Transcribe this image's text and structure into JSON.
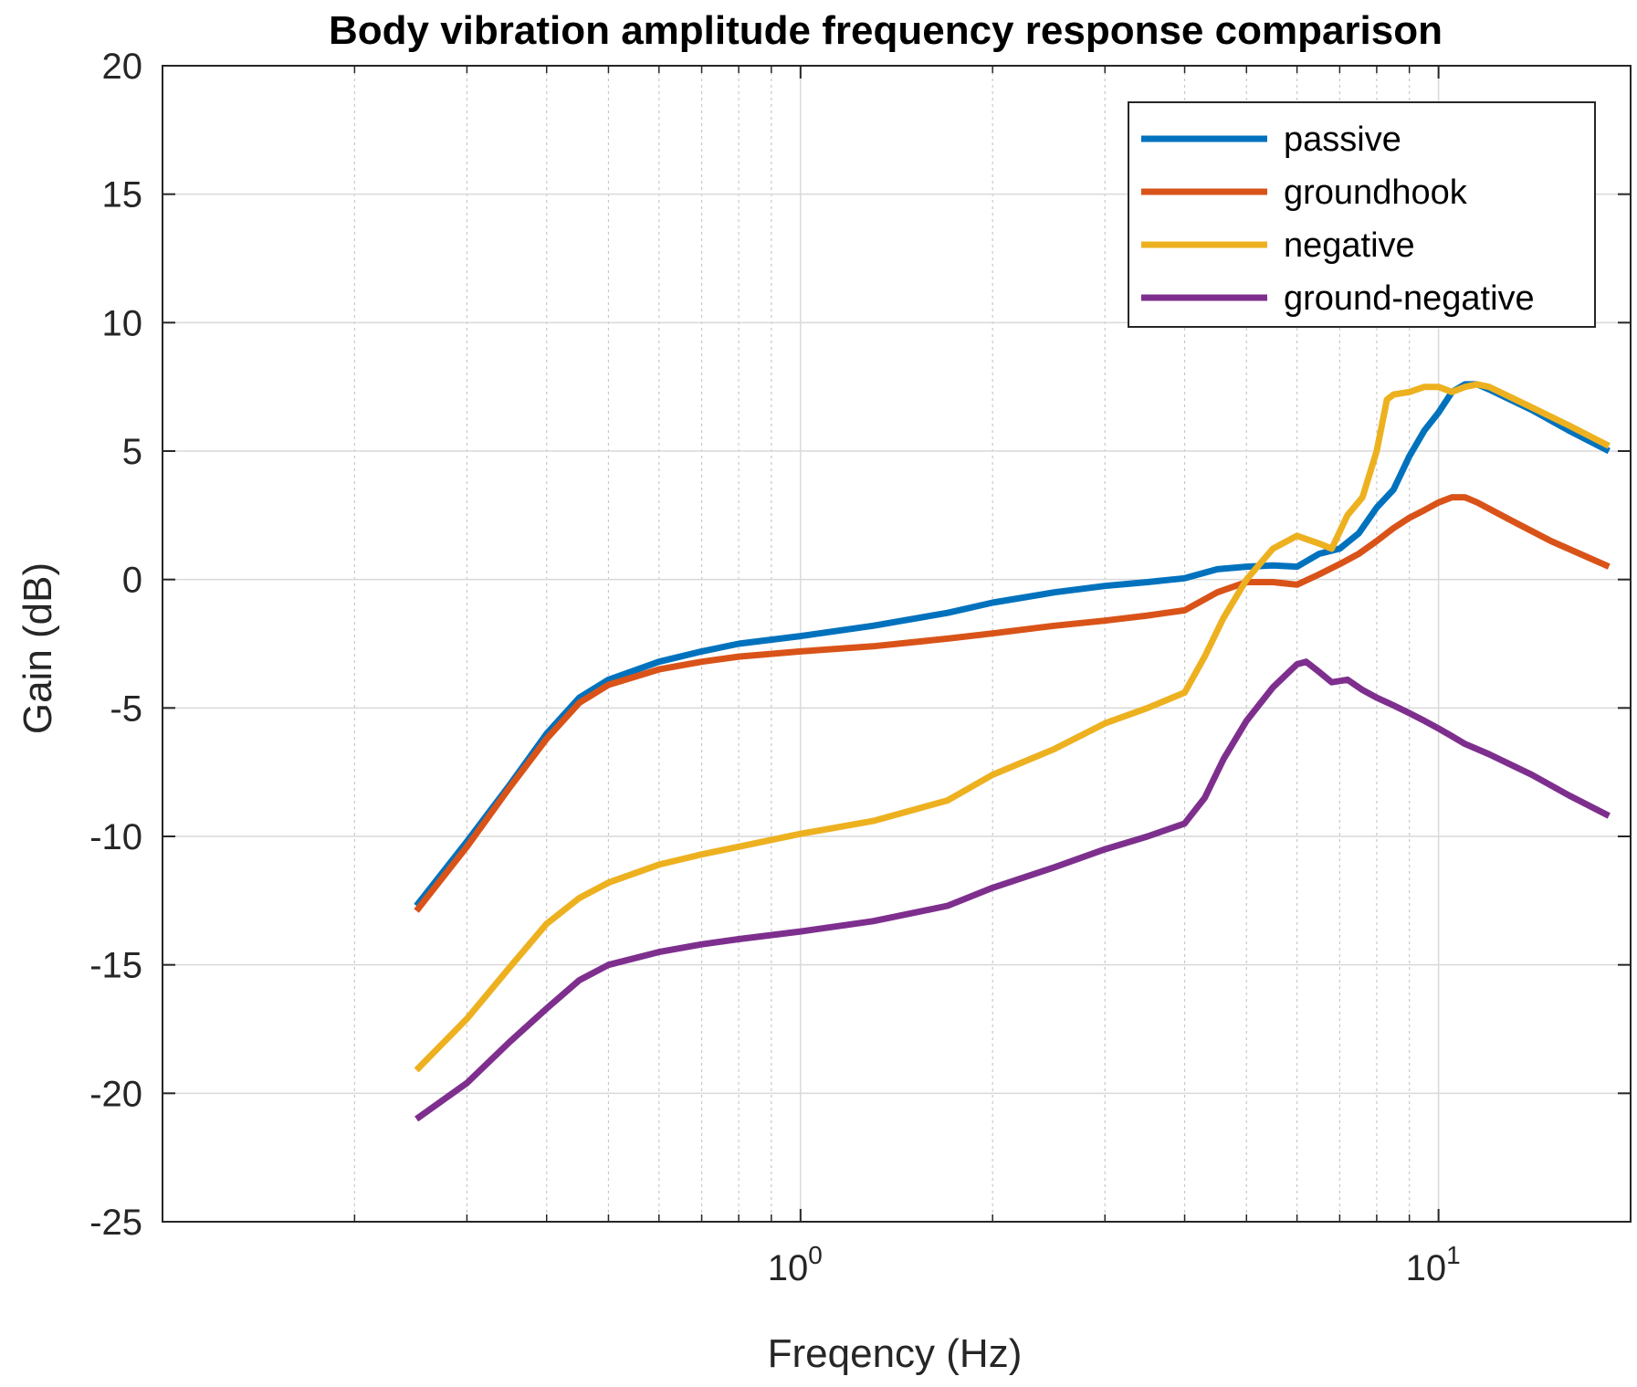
{
  "chart_data": {
    "type": "line",
    "title": "Body vibration amplitude frequency response comparison",
    "xlabel": "Freqency (Hz)",
    "ylabel": "Gain (dB)",
    "xscale": "log",
    "xlim": [
      0.1,
      20
    ],
    "ylim": [
      -25,
      20
    ],
    "grid": true,
    "legend_position": "top-right",
    "x_ticks": [
      {
        "value": 1,
        "base": "10",
        "exp": "0"
      },
      {
        "value": 10,
        "base": "10",
        "exp": "1"
      }
    ],
    "y_ticks": [
      {
        "value": 20,
        "label": "20"
      },
      {
        "value": 15,
        "label": "15"
      },
      {
        "value": 10,
        "label": "10"
      },
      {
        "value": 5,
        "label": "5"
      },
      {
        "value": 0,
        "label": "0"
      },
      {
        "value": -5,
        "label": "-5"
      },
      {
        "value": -10,
        "label": "-10"
      },
      {
        "value": -15,
        "label": "-15"
      },
      {
        "value": -20,
        "label": "-20"
      },
      {
        "value": -25,
        "label": "-25"
      }
    ],
    "series": [
      {
        "name": "passive",
        "color": "#0072BD",
        "points": [
          [
            0.25,
            -12.7
          ],
          [
            0.3,
            -10.2
          ],
          [
            0.35,
            -8.0
          ],
          [
            0.4,
            -6.0
          ],
          [
            0.45,
            -4.6
          ],
          [
            0.5,
            -3.9
          ],
          [
            0.6,
            -3.2
          ],
          [
            0.7,
            -2.8
          ],
          [
            0.8,
            -2.5
          ],
          [
            1.0,
            -2.2
          ],
          [
            1.3,
            -1.8
          ],
          [
            1.7,
            -1.3
          ],
          [
            2.0,
            -0.9
          ],
          [
            2.5,
            -0.5
          ],
          [
            3.0,
            -0.25
          ],
          [
            3.5,
            -0.1
          ],
          [
            4.0,
            0.05
          ],
          [
            4.5,
            0.4
          ],
          [
            5.0,
            0.5
          ],
          [
            5.5,
            0.55
          ],
          [
            6.0,
            0.5
          ],
          [
            6.5,
            1.0
          ],
          [
            7.0,
            1.2
          ],
          [
            7.5,
            1.8
          ],
          [
            8.0,
            2.8
          ],
          [
            8.5,
            3.5
          ],
          [
            9.0,
            4.8
          ],
          [
            9.5,
            5.8
          ],
          [
            10.0,
            6.5
          ],
          [
            10.5,
            7.3
          ],
          [
            11.0,
            7.6
          ],
          [
            11.5,
            7.6
          ],
          [
            12.0,
            7.4
          ],
          [
            14.0,
            6.6
          ],
          [
            16.0,
            5.8
          ],
          [
            18.5,
            5.0
          ]
        ]
      },
      {
        "name": "groundhook",
        "color": "#D95319",
        "points": [
          [
            0.25,
            -12.9
          ],
          [
            0.3,
            -10.4
          ],
          [
            0.35,
            -8.1
          ],
          [
            0.4,
            -6.2
          ],
          [
            0.45,
            -4.8
          ],
          [
            0.5,
            -4.1
          ],
          [
            0.6,
            -3.5
          ],
          [
            0.7,
            -3.2
          ],
          [
            0.8,
            -3.0
          ],
          [
            1.0,
            -2.8
          ],
          [
            1.3,
            -2.6
          ],
          [
            1.7,
            -2.3
          ],
          [
            2.0,
            -2.1
          ],
          [
            2.5,
            -1.8
          ],
          [
            3.0,
            -1.6
          ],
          [
            3.5,
            -1.4
          ],
          [
            4.0,
            -1.2
          ],
          [
            4.5,
            -0.5
          ],
          [
            5.0,
            -0.1
          ],
          [
            5.5,
            -0.1
          ],
          [
            6.0,
            -0.2
          ],
          [
            6.5,
            0.2
          ],
          [
            7.0,
            0.6
          ],
          [
            7.5,
            1.0
          ],
          [
            8.0,
            1.5
          ],
          [
            8.5,
            2.0
          ],
          [
            9.0,
            2.4
          ],
          [
            9.5,
            2.7
          ],
          [
            10.0,
            3.0
          ],
          [
            10.5,
            3.2
          ],
          [
            11.0,
            3.2
          ],
          [
            11.5,
            3.0
          ],
          [
            13.0,
            2.3
          ],
          [
            15.0,
            1.5
          ],
          [
            18.5,
            0.5
          ]
        ]
      },
      {
        "name": "negative",
        "color": "#EDB120",
        "points": [
          [
            0.25,
            -19.1
          ],
          [
            0.3,
            -17.1
          ],
          [
            0.35,
            -15.1
          ],
          [
            0.4,
            -13.4
          ],
          [
            0.45,
            -12.4
          ],
          [
            0.5,
            -11.8
          ],
          [
            0.6,
            -11.1
          ],
          [
            0.7,
            -10.7
          ],
          [
            0.8,
            -10.4
          ],
          [
            1.0,
            -9.9
          ],
          [
            1.3,
            -9.4
          ],
          [
            1.7,
            -8.6
          ],
          [
            2.0,
            -7.6
          ],
          [
            2.5,
            -6.6
          ],
          [
            3.0,
            -5.6
          ],
          [
            3.5,
            -5.0
          ],
          [
            4.0,
            -4.4
          ],
          [
            4.3,
            -3.0
          ],
          [
            4.6,
            -1.5
          ],
          [
            5.0,
            0.0
          ],
          [
            5.5,
            1.2
          ],
          [
            6.0,
            1.7
          ],
          [
            6.5,
            1.4
          ],
          [
            6.8,
            1.2
          ],
          [
            7.2,
            2.5
          ],
          [
            7.6,
            3.2
          ],
          [
            8.0,
            5.0
          ],
          [
            8.3,
            7.0
          ],
          [
            8.5,
            7.2
          ],
          [
            9.0,
            7.3
          ],
          [
            9.5,
            7.5
          ],
          [
            10.0,
            7.5
          ],
          [
            10.5,
            7.3
          ],
          [
            11.0,
            7.5
          ],
          [
            11.5,
            7.6
          ],
          [
            12.0,
            7.5
          ],
          [
            14.0,
            6.7
          ],
          [
            16.0,
            6.0
          ],
          [
            18.5,
            5.2
          ]
        ]
      },
      {
        "name": "ground-negative",
        "color": "#7E2F8E",
        "points": [
          [
            0.25,
            -21.0
          ],
          [
            0.3,
            -19.6
          ],
          [
            0.35,
            -18.0
          ],
          [
            0.4,
            -16.7
          ],
          [
            0.45,
            -15.6
          ],
          [
            0.5,
            -15.0
          ],
          [
            0.6,
            -14.5
          ],
          [
            0.7,
            -14.2
          ],
          [
            0.8,
            -14.0
          ],
          [
            1.0,
            -13.7
          ],
          [
            1.3,
            -13.3
          ],
          [
            1.7,
            -12.7
          ],
          [
            2.0,
            -12.0
          ],
          [
            2.5,
            -11.2
          ],
          [
            3.0,
            -10.5
          ],
          [
            3.5,
            -10.0
          ],
          [
            4.0,
            -9.5
          ],
          [
            4.3,
            -8.5
          ],
          [
            4.6,
            -7.0
          ],
          [
            5.0,
            -5.5
          ],
          [
            5.5,
            -4.2
          ],
          [
            6.0,
            -3.3
          ],
          [
            6.2,
            -3.2
          ],
          [
            6.5,
            -3.6
          ],
          [
            6.8,
            -4.0
          ],
          [
            7.2,
            -3.9
          ],
          [
            7.6,
            -4.3
          ],
          [
            8.0,
            -4.6
          ],
          [
            8.5,
            -4.9
          ],
          [
            9.0,
            -5.2
          ],
          [
            9.5,
            -5.5
          ],
          [
            10.0,
            -5.8
          ],
          [
            10.5,
            -6.1
          ],
          [
            11.0,
            -6.4
          ],
          [
            12.0,
            -6.8
          ],
          [
            14.0,
            -7.6
          ],
          [
            16.0,
            -8.4
          ],
          [
            18.5,
            -9.2
          ]
        ]
      }
    ]
  }
}
